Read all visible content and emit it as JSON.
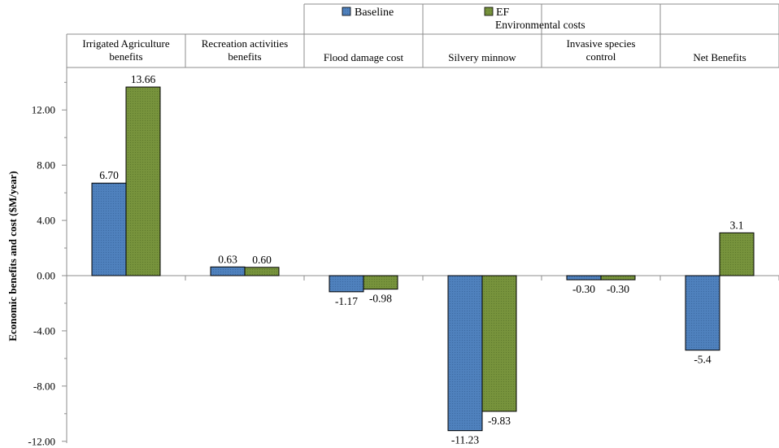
{
  "chart_data": {
    "type": "bar",
    "ylabel": "Economic benefits and cost ($M/year)",
    "ylim": [
      -12,
      16
    ],
    "yticks": [
      12,
      8,
      4,
      0,
      -4,
      -8,
      -12
    ],
    "ytick_labels": [
      "12.00",
      "8.00",
      "4.00",
      "0.00",
      "-4.00",
      "-8.00",
      "-12.00"
    ],
    "grid": false,
    "legend_position": "top-center",
    "group_header": "Environmental costs",
    "categories": [
      [
        "Irrigated Agriculture",
        "benefits"
      ],
      [
        "Recreation activities",
        "benefits"
      ],
      [
        "Flood damage cost"
      ],
      [
        "Silvery minnow"
      ],
      [
        "Invasive species",
        "control"
      ],
      [
        "Net Benefits"
      ]
    ],
    "series": [
      {
        "name": "Baseline",
        "color": "#4f81bd",
        "values": [
          6.7,
          0.63,
          -1.17,
          -11.23,
          -0.3,
          -5.4
        ],
        "labels": [
          "6.70",
          "0.63",
          "-1.17",
          "-11.23",
          "-0.30",
          "-5.4"
        ]
      },
      {
        "name": "EF",
        "color": "#77933c",
        "values": [
          13.66,
          0.6,
          -0.98,
          -9.83,
          -0.3,
          3.1
        ],
        "labels": [
          "13.66",
          "0.60",
          "-0.98",
          "-9.83",
          "-0.30",
          "3.1"
        ]
      }
    ]
  }
}
